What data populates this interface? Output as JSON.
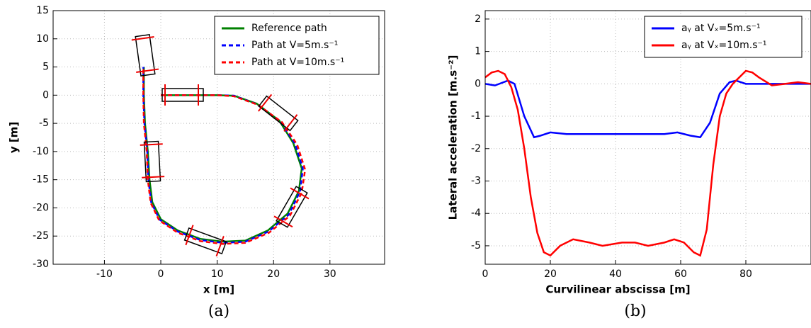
{
  "chart_data": [
    {
      "type": "line",
      "caption": "(a)",
      "xlabel": "x [m]",
      "ylabel": "y [m]",
      "xlim": [
        -19.1,
        39.7
      ],
      "ylim": [
        -30,
        15
      ],
      "xticks": [
        -10,
        0,
        10,
        20,
        30
      ],
      "yticks": [
        -30,
        -25,
        -20,
        -15,
        -10,
        -5,
        0,
        5,
        10,
        15
      ],
      "grid": true,
      "legend": "upper right",
      "series": [
        {
          "name": "Reference path",
          "color": "#008000",
          "dash": false,
          "x": [
            0,
            10,
            13,
            17,
            21,
            23.5,
            25,
            24.5,
            22.5,
            19,
            15,
            11,
            7,
            3,
            0,
            -1.5,
            -2,
            -2.3,
            -2.8,
            -3,
            -3
          ],
          "values": [
            0,
            0,
            -0.1,
            -1.5,
            -4.5,
            -8.5,
            -13,
            -17,
            -21,
            -24,
            -25.8,
            -26,
            -25.5,
            -24,
            -22,
            -19,
            -15,
            -10,
            -5,
            0,
            5
          ]
        },
        {
          "name": "Path at V=5m.s⁻¹",
          "color": "#0000ff",
          "dash": true,
          "x": [
            0,
            10,
            13,
            17,
            21.2,
            23.8,
            25.2,
            24.7,
            22.7,
            19.1,
            15,
            11,
            7,
            3,
            -0.2,
            -1.7,
            -2.2,
            -2.4,
            -2.9,
            -3.1,
            -3.1
          ],
          "values": [
            0,
            0,
            -0.1,
            -1.6,
            -4.6,
            -8.6,
            -13,
            -17.1,
            -21.2,
            -24.2,
            -26,
            -26.2,
            -25.7,
            -24.2,
            -22.1,
            -19,
            -15,
            -10,
            -5,
            0,
            5
          ]
        },
        {
          "name": "Path at V=10m.s⁻¹",
          "color": "#ff0000",
          "dash": true,
          "x": [
            0,
            10,
            13,
            17.2,
            21.5,
            24.2,
            25.6,
            25,
            22.9,
            19.2,
            15,
            11,
            7,
            3,
            -0.3,
            -1.8,
            -2.3,
            -2.5,
            -3,
            -3.1,
            -3.1
          ],
          "values": [
            0,
            0,
            -0.2,
            -1.7,
            -4.8,
            -8.8,
            -13.2,
            -17.3,
            -21.4,
            -24.4,
            -26.2,
            -26.4,
            -25.9,
            -24.4,
            -22.2,
            -19.1,
            -15,
            -10,
            -5,
            0,
            5
          ]
        }
      ]
    },
    {
      "type": "line",
      "caption": "(b)",
      "xlabel": "Curvilinear abscissa  [m]",
      "ylabel": "Lateral acceleration [m.s⁻²]",
      "xlim": [
        0,
        100
      ],
      "ylim": [
        -5.57,
        2.26
      ],
      "xticks": [
        0,
        20,
        40,
        60,
        80
      ],
      "yticks": [
        -5,
        -4,
        -3,
        -2,
        -1,
        0,
        1,
        2
      ],
      "grid": true,
      "legend": "upper right",
      "series": [
        {
          "name": "aᵧ at Vₓ=5m.s⁻¹",
          "color": "#0000ff",
          "dash": false,
          "x": [
            0,
            3,
            7,
            9,
            12,
            15,
            17,
            20,
            25,
            40,
            55,
            59,
            63,
            66,
            69,
            72,
            75,
            77,
            80,
            85,
            90,
            100
          ],
          "values": [
            0,
            -0.05,
            0.1,
            0,
            -1,
            -1.65,
            -1.6,
            -1.5,
            -1.55,
            -1.55,
            -1.55,
            -1.5,
            -1.6,
            -1.65,
            -1.2,
            -0.3,
            0.05,
            0.1,
            0,
            0,
            0,
            0
          ]
        },
        {
          "name": "aᵧ at Vₓ=10m.s⁻¹",
          "color": "#ff0000",
          "dash": false,
          "x": [
            0,
            2,
            4,
            6,
            8,
            10,
            12,
            14,
            16,
            18,
            20,
            23,
            27,
            32,
            36,
            42,
            46,
            50,
            55,
            58,
            61,
            64,
            66,
            68,
            70,
            72,
            74,
            76,
            78,
            80,
            82,
            84,
            88,
            92,
            96,
            100
          ],
          "values": [
            0.2,
            0.35,
            0.4,
            0.3,
            -0.1,
            -0.8,
            -2,
            -3.5,
            -4.6,
            -5.2,
            -5.3,
            -5,
            -4.8,
            -4.9,
            -5,
            -4.9,
            -4.9,
            -5,
            -4.9,
            -4.8,
            -4.9,
            -5.2,
            -5.3,
            -4.5,
            -2.5,
            -1,
            -0.3,
            0,
            0.2,
            0.4,
            0.35,
            0.2,
            -0.05,
            0,
            0.05,
            0
          ]
        }
      ]
    }
  ]
}
